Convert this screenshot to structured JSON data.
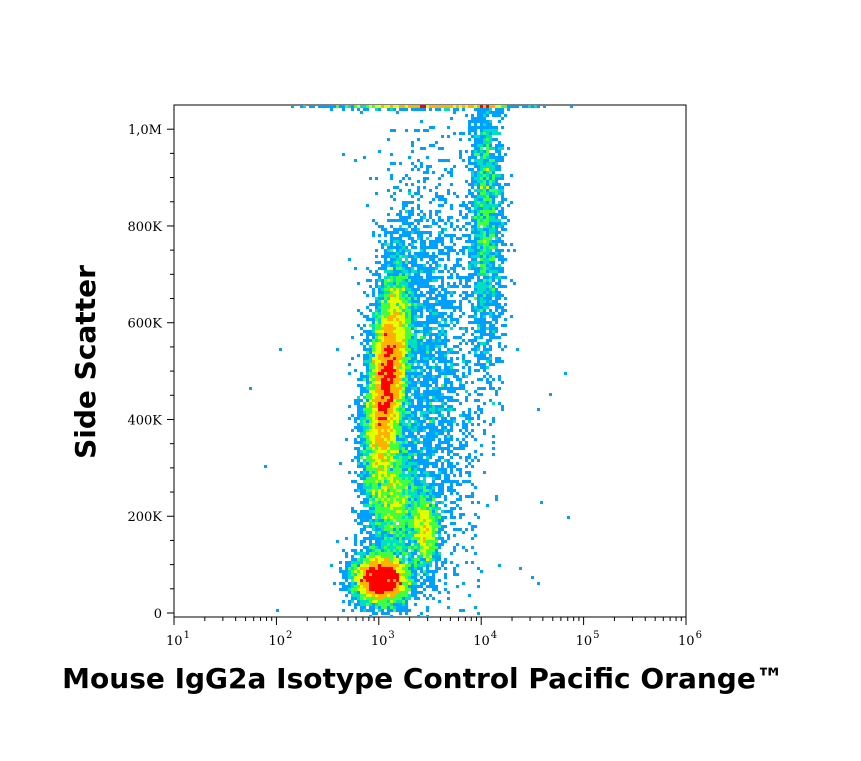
{
  "chart_data": {
    "type": "scatter",
    "subtype": "flow-cytometry-density-dot-plot",
    "xlabel": "Mouse IgG2a Isotype Control  Pacific Orange™",
    "ylabel": "Side Scatter",
    "x_scale": "log",
    "xlim": [
      10,
      1000000
    ],
    "x_ticks": [
      {
        "base": "10",
        "exp": "1",
        "value": 10
      },
      {
        "base": "10",
        "exp": "2",
        "value": 100
      },
      {
        "base": "10",
        "exp": "3",
        "value": 1000
      },
      {
        "base": "10",
        "exp": "4",
        "value": 10000
      },
      {
        "base": "10",
        "exp": "5",
        "value": 100000
      },
      {
        "base": "10",
        "exp": "6",
        "value": 1000000
      }
    ],
    "y_scale": "linear",
    "ylim": [
      0,
      1050000
    ],
    "y_ticks": [
      {
        "label": "0",
        "value": 0
      },
      {
        "label": "200K",
        "value": 200000
      },
      {
        "label": "400K",
        "value": 400000
      },
      {
        "label": "600K",
        "value": 600000
      },
      {
        "label": "800K",
        "value": 800000
      },
      {
        "label": "1,0M",
        "value": 1000000
      }
    ],
    "grid": false,
    "legend": "none",
    "density_colors": [
      "#0000ff",
      "#00a0ff",
      "#00e0c0",
      "#40ff40",
      "#e0ff00",
      "#ffb000",
      "#ff0000"
    ],
    "populations": [
      {
        "x_log_center": 3.08,
        "x_log_sd": 0.09,
        "y_center": 480000,
        "y_sd": 110000,
        "tilt": 0.55,
        "weight": 0.42
      },
      {
        "x_log_center": 3.02,
        "x_log_sd": 0.13,
        "y_center": 70000,
        "y_sd": 25000,
        "tilt": 0.0,
        "weight": 0.22
      },
      {
        "x_log_center": 3.45,
        "x_log_sd": 0.07,
        "y_center": 170000,
        "y_sd": 40000,
        "tilt": 0.0,
        "weight": 0.05
      },
      {
        "x_log_center": 3.15,
        "x_log_sd": 0.12,
        "y_center": 230000,
        "y_sd": 60000,
        "tilt": 0.0,
        "weight": 0.08
      },
      {
        "x_log_center": 4.05,
        "x_log_sd": 0.08,
        "y_center": 820000,
        "y_sd": 150000,
        "tilt": 0.0,
        "weight": 0.08
      },
      {
        "x_log_center": 3.45,
        "x_log_sd": 0.25,
        "y_center": 500000,
        "y_sd": 220000,
        "tilt": 0.0,
        "weight": 0.12
      },
      {
        "x_log_center": 3.45,
        "x_log_sd": 0.45,
        "y_center": 1050000,
        "y_sd": 4000,
        "tilt": 0.0,
        "weight": 0.03
      }
    ]
  }
}
